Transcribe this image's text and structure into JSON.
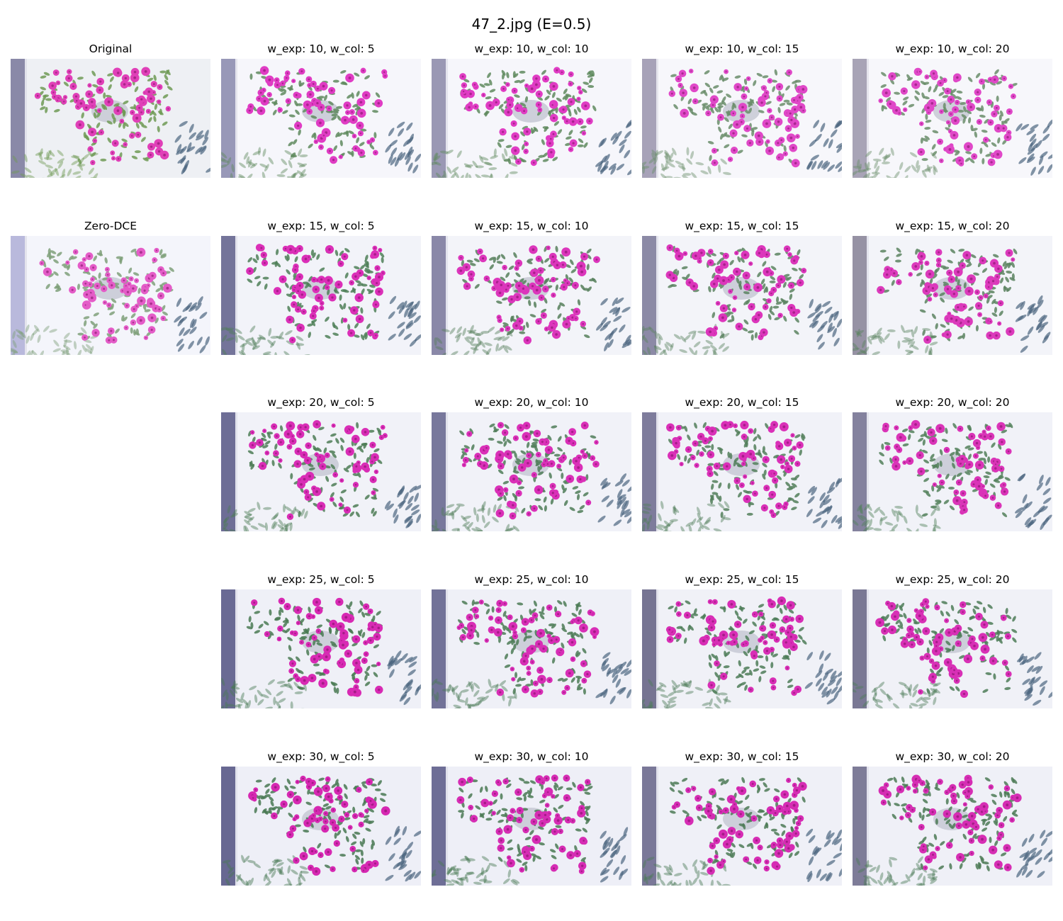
{
  "figure": {
    "title": "47_2.jpg (E=0.5)"
  },
  "reference_panels": [
    {
      "title": "Original",
      "wall": "#eef0f4",
      "pillar": "#8a89a8",
      "leaf": "#6f9a55",
      "flower": "#e040b8"
    },
    {
      "title": "Zero-DCE",
      "wall": "#f4f5fb",
      "pillar": "#b9b9dc",
      "leaf": "#7fa07a",
      "flower": "#e45cc8"
    }
  ],
  "grid": {
    "rows": [
      {
        "cells": [
          {
            "title": "w_exp: 10, w_col: 5",
            "wall": "#f6f6fb",
            "pillar": "#9898b8",
            "leaf": "#5f8a5e",
            "flower": "#e03cc4"
          },
          {
            "title": "w_exp: 10, w_col: 10",
            "wall": "#f6f6fb",
            "pillar": "#9a98b4",
            "leaf": "#5f8a5e",
            "flower": "#e03cc4"
          },
          {
            "title": "w_exp: 10, w_col: 15",
            "wall": "#f7f7fb",
            "pillar": "#a7a2b8",
            "leaf": "#6a8d6a",
            "flower": "#e048c8"
          },
          {
            "title": "w_exp: 10, w_col: 20",
            "wall": "#f7f7fb",
            "pillar": "#a8a4b6",
            "leaf": "#6a8d6a",
            "flower": "#e048c8"
          }
        ]
      },
      {
        "cells": [
          {
            "title": "w_exp: 15, w_col: 5",
            "wall": "#f2f3f9",
            "pillar": "#74749a",
            "leaf": "#4f7f58",
            "flower": "#db2fb8"
          },
          {
            "title": "w_exp: 15, w_col: 10",
            "wall": "#f3f4f9",
            "pillar": "#8a88a8",
            "leaf": "#567f5c",
            "flower": "#dc36bc"
          },
          {
            "title": "w_exp: 15, w_col: 15",
            "wall": "#f3f4f9",
            "pillar": "#8c8aa6",
            "leaf": "#5a8260",
            "flower": "#dc36bc"
          },
          {
            "title": "w_exp: 15, w_col: 20",
            "wall": "#f3f4f9",
            "pillar": "#9692a4",
            "leaf": "#5a8260",
            "flower": "#dc3abc"
          }
        ]
      },
      {
        "cells": [
          {
            "title": "w_exp: 20, w_col: 5",
            "wall": "#f1f2f8",
            "pillar": "#6e6e96",
            "leaf": "#4d7c56",
            "flower": "#d92db6"
          },
          {
            "title": "w_exp: 20, w_col: 10",
            "wall": "#f1f2f8",
            "pillar": "#78789c",
            "leaf": "#4f7d58",
            "flower": "#da30b8"
          },
          {
            "title": "w_exp: 20, w_col: 15",
            "wall": "#f1f2f8",
            "pillar": "#7e7c9c",
            "leaf": "#527f5a",
            "flower": "#da30b8"
          },
          {
            "title": "w_exp: 20, w_col: 20",
            "wall": "#f1f2f8",
            "pillar": "#84829e",
            "leaf": "#52805a",
            "flower": "#da34b8"
          }
        ]
      },
      {
        "cells": [
          {
            "title": "w_exp: 25, w_col: 5",
            "wall": "#eff0f7",
            "pillar": "#6a6a94",
            "leaf": "#4a7a54",
            "flower": "#d82ab4"
          },
          {
            "title": "w_exp: 25, w_col: 10",
            "wall": "#eff0f7",
            "pillar": "#727298",
            "leaf": "#4c7b56",
            "flower": "#d82eb6"
          },
          {
            "title": "w_exp: 25, w_col: 15",
            "wall": "#f0f1f7",
            "pillar": "#767492",
            "leaf": "#4e7c58",
            "flower": "#d82eb6"
          },
          {
            "title": "w_exp: 25, w_col: 20",
            "wall": "#f0f1f7",
            "pillar": "#7a7894",
            "leaf": "#4e7c58",
            "flower": "#d830b6"
          }
        ]
      },
      {
        "cells": [
          {
            "title": "w_exp: 30, w_col: 5",
            "wall": "#eeeff7",
            "pillar": "#686892",
            "leaf": "#487852",
            "flower": "#d628b2"
          },
          {
            "title": "w_exp: 30, w_col: 10",
            "wall": "#eeeff7",
            "pillar": "#6e6e96",
            "leaf": "#4a7954",
            "flower": "#d62cb4"
          },
          {
            "title": "w_exp: 30, w_col: 15",
            "wall": "#eff0f7",
            "pillar": "#7a7898",
            "leaf": "#4c7a56",
            "flower": "#d62cb4"
          },
          {
            "title": "w_exp: 30, w_col: 20",
            "wall": "#eff0f7",
            "pillar": "#7e7c98",
            "leaf": "#4c7a56",
            "flower": "#d62eb4"
          }
        ]
      }
    ]
  }
}
